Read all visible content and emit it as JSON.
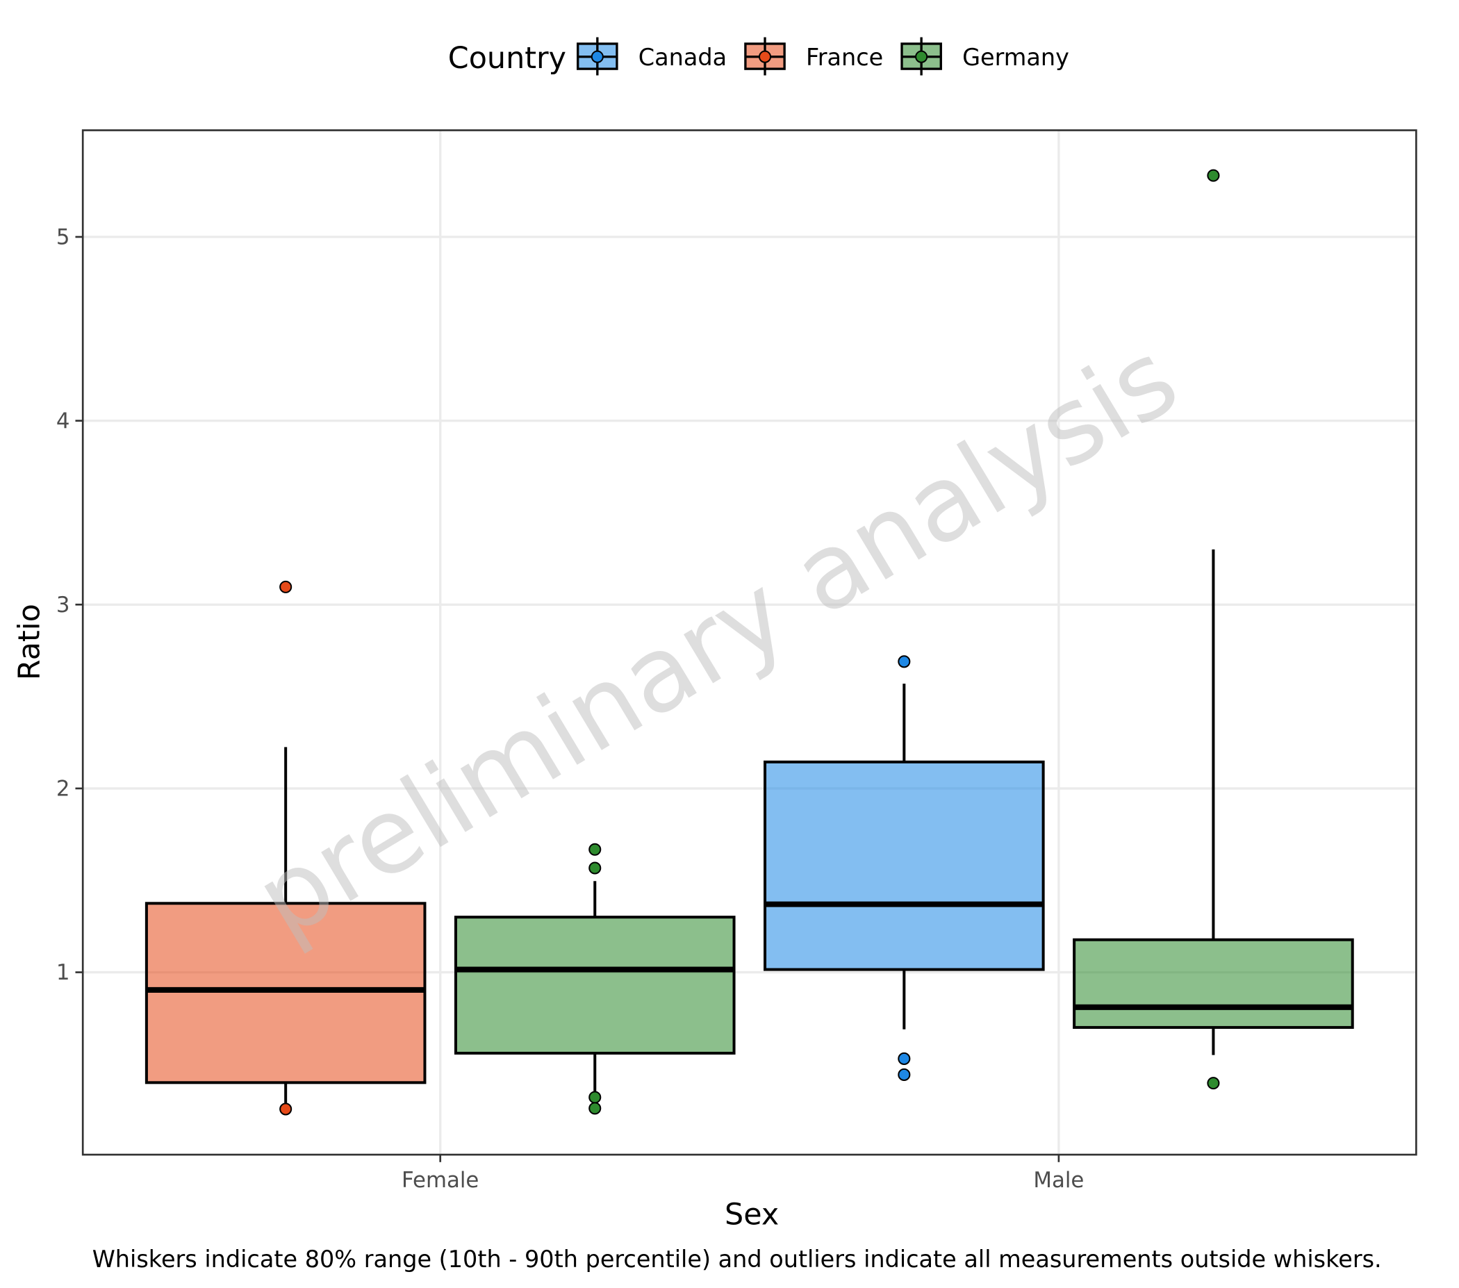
{
  "chart_data": {
    "type": "box",
    "x_label": "Sex",
    "y_label": "Ratio",
    "legend_title": "Country",
    "caption": "Whiskers indicate 80% range (10th - 90th percentile) and outliers indicate all measurements outside whiskers.",
    "watermark": "preliminary analysis",
    "categories": [
      "Female",
      "Male"
    ],
    "ylim": [
      0.008,
      5.58
    ],
    "yticks": [
      1,
      2,
      3,
      4,
      5
    ],
    "grid": true,
    "legend_position": "top",
    "series": [
      {
        "name": "Canada",
        "color": "#1e88e5",
        "boxes": [
          null,
          {
            "whislo": 0.69,
            "q1": 1.015,
            "med": 1.37,
            "q3": 2.144,
            "whishi": 2.57,
            "outliers": [
              2.69,
              0.53,
              0.443
            ]
          }
        ]
      },
      {
        "name": "France",
        "color": "#e64a19",
        "boxes": [
          {
            "whislo": 0.29,
            "q1": 0.4,
            "med": 0.904,
            "q3": 1.375,
            "whishi": 2.225,
            "outliers": [
              3.096,
              0.256
            ]
          },
          null
        ]
      },
      {
        "name": "Germany",
        "color": "#2e8b2e",
        "boxes": [
          {
            "whislo": 0.34,
            "q1": 0.56,
            "med": 1.015,
            "q3": 1.3,
            "whishi": 1.496,
            "outliers": [
              1.668,
              1.567,
              0.32,
              0.26
            ]
          },
          {
            "whislo": 0.55,
            "q1": 0.7,
            "med": 0.81,
            "q3": 1.177,
            "whishi": 3.3,
            "outliers": [
              5.334,
              0.397
            ]
          }
        ]
      }
    ]
  }
}
